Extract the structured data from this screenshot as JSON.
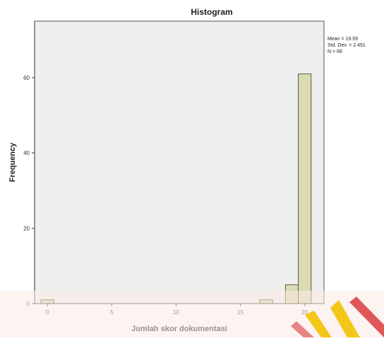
{
  "chart_data": {
    "type": "bar",
    "title": "Histogram",
    "xlabel": "Jumlah skor dokumentasi",
    "ylabel": "Frequency",
    "xlim": [
      -1,
      21.5
    ],
    "ylim": [
      0,
      75
    ],
    "xticks": [
      0,
      5,
      10,
      15,
      20
    ],
    "yticks": [
      0,
      20,
      40,
      60
    ],
    "bin_width": 1,
    "bins": [
      {
        "x": 0,
        "value": 1
      },
      {
        "x": 17,
        "value": 1
      },
      {
        "x": 19,
        "value": 5
      },
      {
        "x": 20,
        "value": 61
      }
    ],
    "stats": {
      "mean": "Mean = 19.59",
      "std": "Std. Dev. = 2.451",
      "n": "N = 68"
    },
    "grid": false,
    "colors": {
      "plot_background": "#efefef",
      "bar_fill": "#dcdcb4",
      "bar_stroke": "#5a5a40",
      "axis": "#333333"
    }
  }
}
